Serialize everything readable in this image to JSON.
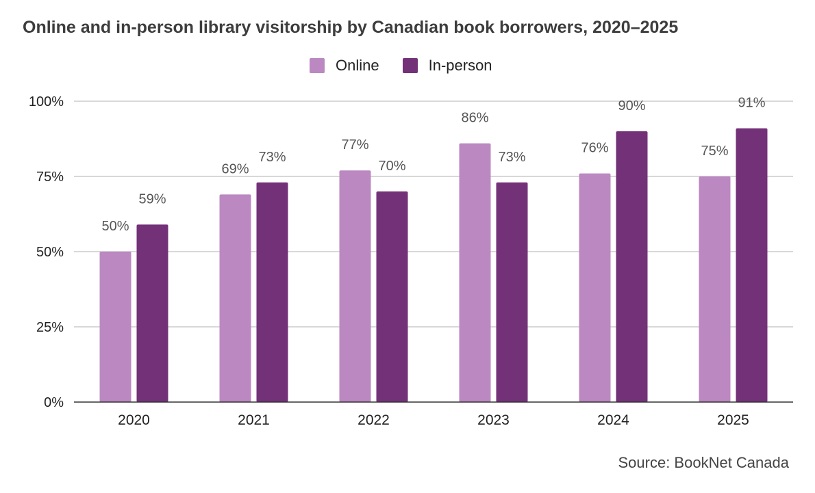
{
  "colors": {
    "online": "#bb88c1",
    "in_person": "#733178",
    "grid": "#cccccc",
    "axis": "#333333"
  },
  "source_text": "Source: BookNet Canada",
  "chart_data": {
    "type": "bar",
    "title": "Online and in-person library visitorship by Canadian book borrowers, 2020–2025",
    "categories": [
      "2020",
      "2021",
      "2022",
      "2023",
      "2024",
      "2025"
    ],
    "series": [
      {
        "name": "Online",
        "values": [
          50,
          69,
          77,
          86,
          76,
          75
        ],
        "labels": [
          "50%",
          "69%",
          "77%",
          "86%",
          "76%",
          "75%"
        ]
      },
      {
        "name": "In-person",
        "values": [
          59,
          73,
          70,
          73,
          90,
          91
        ],
        "labels": [
          "59%",
          "73%",
          "70%",
          "73%",
          "90%",
          "91%"
        ]
      }
    ],
    "ylim": [
      0,
      100
    ],
    "yticks": [
      0,
      25,
      50,
      75,
      100
    ],
    "ytick_labels": [
      "0%",
      "25%",
      "50%",
      "75%",
      "100%"
    ],
    "xlabel": "",
    "ylabel": "",
    "grid": true,
    "legend": "top"
  }
}
